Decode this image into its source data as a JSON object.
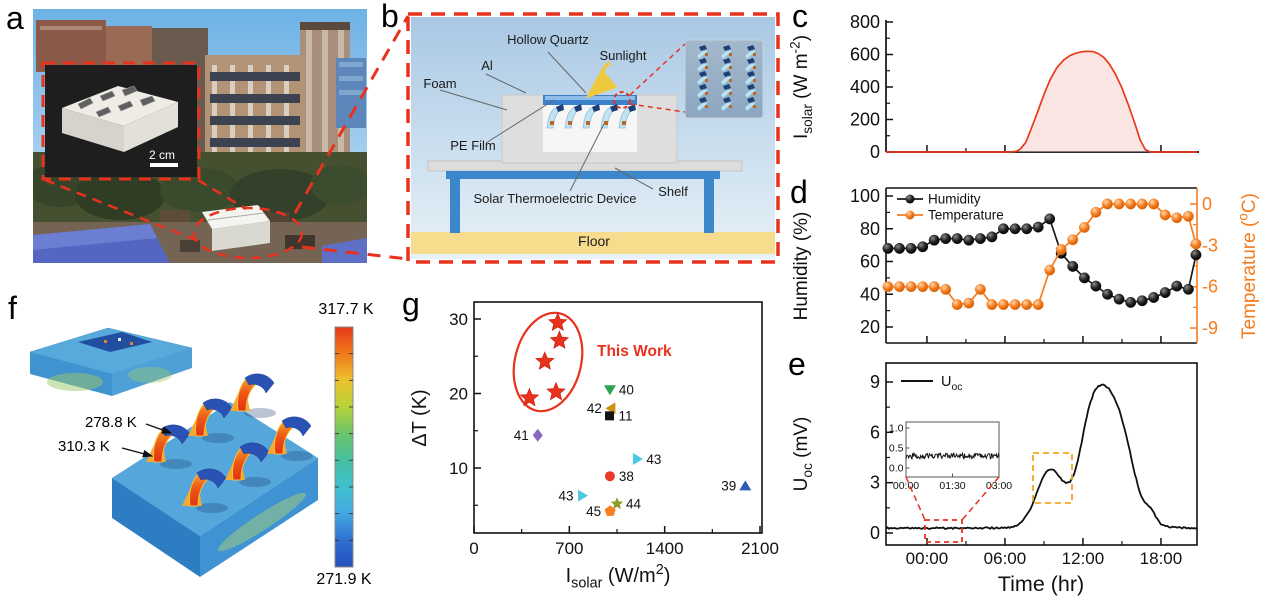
{
  "panels": {
    "a": "a",
    "b": "b",
    "c": "c",
    "d": "d",
    "e": "e",
    "f": "f",
    "g": "g"
  },
  "colors": {
    "accent_red": "#e8321e",
    "temperature_orange": "#f57c1f",
    "series_black": "#1a1a1a",
    "solar_red": "#e8391c",
    "solar_fill": "#fbe5e3",
    "floor_yellow": "#f8dc8e",
    "shelf_blue": "#3c87c9",
    "sun_yellow": "#eec83e"
  },
  "panel_a": {
    "scale_bar": "2 cm"
  },
  "panel_b": {
    "labels": {
      "hollow_quartz": "Hollow Quartz",
      "al": "Al",
      "foam": "Foam",
      "pe_film": "PE Film",
      "device": "Solar Thermoelectric Device",
      "shelf": "Shelf",
      "floor": "Floor",
      "sunlight": "Sunlight"
    }
  },
  "panel_f": {
    "colorbar_max": "317.7 K",
    "colorbar_min": "271.9 K",
    "cold_annotation": "278.8 K",
    "hot_annotation": "310.3 K",
    "colorbar_stops": [
      "#e8381c",
      "#f07a1a",
      "#ecc12c",
      "#b6d23a",
      "#6cc46a",
      "#46bfa0",
      "#3fc0cf",
      "#45a8e0",
      "#2e6fd0",
      "#2450bc"
    ]
  },
  "chart_data": [
    {
      "id": "solar",
      "type": "area",
      "ylabel_parts": [
        [
          "t",
          "I"
        ],
        [
          "sub",
          "solar"
        ],
        [
          "t",
          " (W m"
        ],
        [
          "sup",
          "-2"
        ],
        [
          "t",
          ")"
        ]
      ],
      "yticks": [
        0,
        200,
        400,
        600,
        800
      ],
      "ylim": [
        0,
        800
      ],
      "xlim_hours": [
        -3.15,
        20.85
      ],
      "line_color": "#e8391c",
      "fill_color": "#fbe5e3",
      "x_hours": [
        -3.15,
        0,
        2,
        4,
        5,
        6,
        6.5,
        6.9,
        7.2,
        7.6,
        8,
        8.5,
        9,
        9.5,
        10,
        10.5,
        11,
        11.5,
        12,
        12.4,
        12.8,
        13.2,
        13.6,
        14,
        14.5,
        15,
        15.5,
        16,
        16.4,
        16.8,
        17.2,
        18,
        20.85
      ],
      "values": [
        0,
        0,
        0,
        0,
        0,
        0,
        1,
        5,
        20,
        60,
        140,
        245,
        355,
        450,
        520,
        565,
        593,
        610,
        618,
        620,
        617,
        605,
        582,
        545,
        480,
        395,
        290,
        175,
        75,
        15,
        0,
        0,
        0
      ]
    },
    {
      "id": "humidity_temperature",
      "type": "line-markers",
      "ylabel": "Humidity (%)",
      "y2label_parts": [
        [
          "t",
          "Temperature ("
        ],
        [
          "sup",
          "o"
        ],
        [
          "t",
          "C)"
        ]
      ],
      "yticks": [
        20,
        40,
        60,
        80,
        100
      ],
      "y2ticks": [
        0,
        -3,
        -6,
        -9
      ],
      "x_hours": [
        -3,
        -2.11,
        -1.22,
        -0.33,
        0.56,
        1.44,
        2.33,
        3.22,
        4.11,
        5,
        5.89,
        6.78,
        7.67,
        8.56,
        9.44,
        10.33,
        11.22,
        12.11,
        13,
        13.89,
        14.78,
        15.67,
        16.56,
        17.44,
        18.33,
        19.22,
        20.11,
        21
      ],
      "series": [
        {
          "name": "Humidity",
          "color": "#1a1a1a",
          "axis": "left",
          "values": [
            68,
            68,
            68,
            69,
            73,
            74,
            74,
            73,
            74,
            75,
            80,
            80,
            80,
            81,
            86,
            65,
            57,
            50,
            45,
            40,
            37,
            35,
            36,
            38,
            41,
            45,
            43,
            64
          ]
        },
        {
          "name": "Temperature",
          "color": "#f57c1f",
          "axis": "right",
          "values": [
            -6,
            -6,
            -6,
            -6,
            -6,
            -6.2,
            -7.3,
            -7.2,
            -6.2,
            -7.3,
            -7.3,
            -7.3,
            -7.3,
            -7.3,
            -4.8,
            -3.3,
            -2.6,
            -1.7,
            -0.6,
            0,
            0,
            0,
            0,
            0,
            -0.8,
            -1,
            -0.9,
            -2.9
          ]
        }
      ]
    },
    {
      "id": "uoc",
      "type": "line",
      "legend_parts": [
        [
          "t",
          "U"
        ],
        [
          "sub",
          "oc"
        ]
      ],
      "ylabel_parts": [
        [
          "t",
          "U"
        ],
        [
          "sub",
          "oc"
        ],
        [
          "t",
          " (mV)"
        ]
      ],
      "xlabel": "Time (hr)",
      "yticks": [
        0,
        3,
        6,
        9
      ],
      "xtick_hours": [
        0,
        6,
        12,
        18
      ],
      "xtick_labels": [
        "00:00",
        "06:00",
        "12:00",
        "18:00"
      ],
      "line_color": "#111111",
      "x_hours": [
        -3.15,
        -2,
        -1,
        0,
        1,
        2,
        3,
        4,
        5,
        6,
        6.5,
        7,
        7.4,
        7.8,
        8.1,
        8.4,
        8.7,
        9,
        9.2,
        9.5,
        9.8,
        10.1,
        10.4,
        10.7,
        11,
        11.3,
        11.6,
        11.9,
        12.2,
        12.5,
        12.8,
        13.1,
        13.4,
        13.7,
        14,
        14.4,
        14.8,
        15.2,
        15.6,
        16,
        16.3,
        16.6,
        16.9,
        17.2,
        17.6,
        18,
        18.5,
        19,
        20,
        20.85
      ],
      "values": [
        0.3,
        0.28,
        0.3,
        0.29,
        0.3,
        0.28,
        0.3,
        0.29,
        0.3,
        0.3,
        0.33,
        0.45,
        0.75,
        1.2,
        1.7,
        2.3,
        2.9,
        3.4,
        3.65,
        3.8,
        3.7,
        3.45,
        3.15,
        2.95,
        3.05,
        3.5,
        4.3,
        5.4,
        6.6,
        7.6,
        8.3,
        8.7,
        8.82,
        8.8,
        8.6,
        8.1,
        7.3,
        6.2,
        4.9,
        3.5,
        2.6,
        2.0,
        1.7,
        1.55,
        1.0,
        0.55,
        0.38,
        0.32,
        0.3,
        0.3
      ],
      "inset": {
        "baseline_mV": 0.3,
        "ytick_values": [
          0,
          0.5,
          1
        ],
        "ytick_labels": [
          "0.0",
          "0.5",
          "1.0"
        ],
        "xtick_labels": [
          "00:00",
          "01:30",
          "03:00"
        ]
      }
    },
    {
      "id": "comparison",
      "type": "scatter",
      "xlabel_parts": [
        [
          "t",
          "I"
        ],
        [
          "sub",
          "solar"
        ],
        [
          "t",
          " (W/m"
        ],
        [
          "sup",
          "2"
        ],
        [
          "t",
          ")"
        ]
      ],
      "ylabel": "ΔT (K)",
      "xticks": [
        0,
        700,
        1400,
        2100
      ],
      "yticks": [
        10,
        20,
        30
      ],
      "xlim": [
        0,
        2110
      ],
      "ylim": [
        1,
        32.5
      ],
      "this_work": {
        "label": "This Work",
        "color": "#e8321e",
        "marker": "star",
        "points": [
          [
            615,
            29.5
          ],
          [
            627,
            27.1
          ],
          [
            520,
            24.3
          ],
          [
            407,
            19.4
          ],
          [
            602,
            20.2
          ]
        ]
      },
      "references": [
        {
          "ref": "40",
          "x": 998,
          "y": 20.5,
          "marker": "triangle-down",
          "color": "#2fa44e",
          "label_side": "right"
        },
        {
          "ref": "42",
          "x": 1005,
          "y": 18.0,
          "marker": "triangle-left",
          "color": "#c9930f",
          "label_side": "left"
        },
        {
          "ref": "11",
          "x": 995,
          "y": 17.0,
          "marker": "square",
          "color": "#141414",
          "label_side": "right"
        },
        {
          "ref": "41",
          "x": 468,
          "y": 14.4,
          "marker": "diamond",
          "color": "#8a68c0",
          "label_side": "left"
        },
        {
          "ref": "43",
          "x": 1200,
          "y": 11.2,
          "marker": "triangle-right",
          "color": "#4ec9e1",
          "label_side": "right"
        },
        {
          "ref": "38",
          "x": 998,
          "y": 8.9,
          "marker": "circle",
          "color": "#e8392a",
          "label_side": "right"
        },
        {
          "ref": "39",
          "x": 1992,
          "y": 7.6,
          "marker": "triangle-up",
          "color": "#2b5fb5",
          "label_side": "left"
        },
        {
          "ref": "43",
          "x": 797,
          "y": 6.3,
          "marker": "triangle-right",
          "color": "#4ec9e1",
          "label_side": "left"
        },
        {
          "ref": "44",
          "x": 1050,
          "y": 5.2,
          "marker": "star-small",
          "color": "#8f9a26",
          "label_side": "right"
        },
        {
          "ref": "45",
          "x": 1000,
          "y": 4.2,
          "marker": "pentagon",
          "color": "#f57e20",
          "label_side": "left"
        }
      ]
    }
  ]
}
